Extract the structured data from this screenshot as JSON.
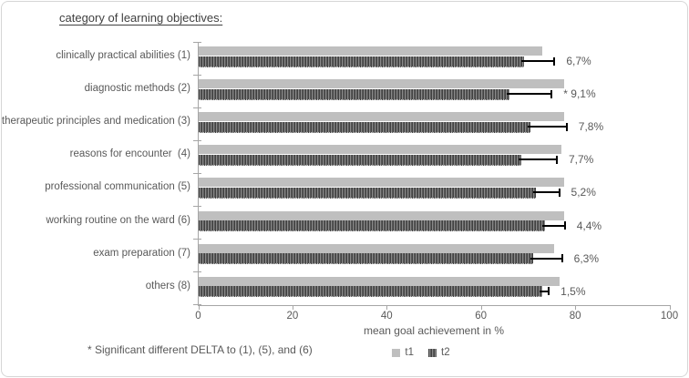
{
  "title": "category of learning objectives:",
  "footnote": "* Significant different DELTA to (1), (5), and (6)",
  "chart_data": {
    "type": "bar",
    "orientation": "horizontal",
    "title": "category of learning objectives:",
    "xlabel": "mean goal achievement in %",
    "ylabel": "",
    "xlim": [
      0,
      100
    ],
    "x_ticks": [
      0,
      20,
      40,
      60,
      80,
      100
    ],
    "grid": false,
    "legend_position": "bottom",
    "categories": [
      "clinically practical abilities (1)",
      "diagnostic methods (2)",
      "therapeutic principles and medication (3)",
      "reasons for encounter  (4)",
      "professional communication (5)",
      "working routine on the ward (6)",
      "exam preparation (7)",
      "others (8)"
    ],
    "series": [
      {
        "name": "t1",
        "color": "#bfbfbf",
        "pattern": "solid",
        "values": [
          73,
          77.5,
          77.5,
          77,
          77.5,
          77.5,
          75.5,
          76.5
        ]
      },
      {
        "name": "t2",
        "color": "#686868",
        "pattern": "woven",
        "values": [
          69,
          66,
          70.5,
          68.5,
          71.5,
          73.5,
          71,
          73
        ]
      }
    ],
    "error_bars": {
      "on_series": "t2",
      "direction": "plus",
      "color": "#000000",
      "lengths": [
        6.7,
        9.1,
        7.8,
        7.7,
        5.2,
        4.4,
        6.3,
        1.5
      ]
    },
    "data_labels": [
      "6,7%",
      "* 9,1%",
      "7,8%",
      "7,7%",
      "5,2%",
      "4,4%",
      "6,3%",
      "1,5%"
    ]
  },
  "legend": {
    "t1_label": "t1",
    "t2_label": "t2"
  },
  "colors": {
    "t1_bar": "#bfbfbf",
    "t2_bar": "#686868",
    "axis": "#a6a6a6",
    "text": "#595959",
    "title_text": "#404040",
    "error_bar": "#000000",
    "frame_border": "#d6d6d6"
  }
}
